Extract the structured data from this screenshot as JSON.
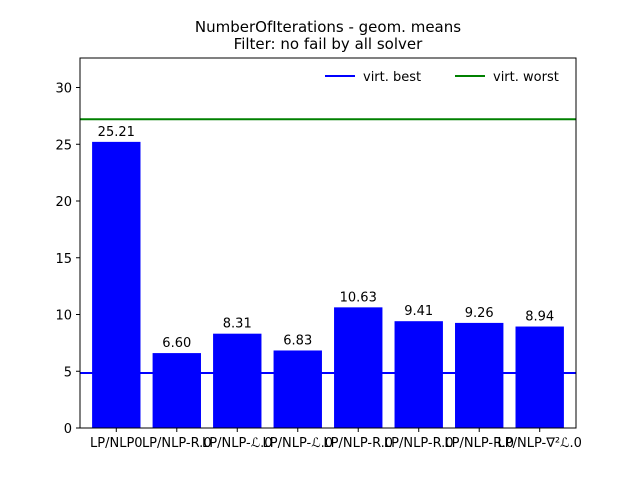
{
  "chart_data": {
    "type": "bar",
    "title": "NumberOfIterations - geom. means",
    "subtitle": "Filter: no fail by all solver",
    "xlabel": "",
    "ylabel": "",
    "categories": [
      "LP/NLP0",
      "LP/NLP-R.0",
      "LP/NLP-ℒ.0",
      "LP/NLP-ℒ.0",
      "LP/NLP-R.0",
      "LP/NLP-R.0",
      "LP/NLP-R.0",
      "LP/NLP-∇²ℒ.0"
    ],
    "values": [
      25.21,
      6.6,
      8.31,
      6.83,
      10.63,
      9.41,
      9.26,
      8.94
    ],
    "value_labels": [
      "25.21",
      "6.60",
      "8.31",
      "6.83",
      "10.63",
      "9.41",
      "9.26",
      "8.94"
    ],
    "bar_color": "#0000ff",
    "ylim": [
      0,
      32.6
    ],
    "yticks": [
      0,
      5,
      10,
      15,
      20,
      25,
      30
    ],
    "reference_lines": [
      {
        "name": "virt. best",
        "value": 4.85,
        "color": "#0000ff"
      },
      {
        "name": "virt. worst",
        "value": 27.2,
        "color": "#008000"
      }
    ],
    "legend_position": "top-right",
    "grid": false
  }
}
